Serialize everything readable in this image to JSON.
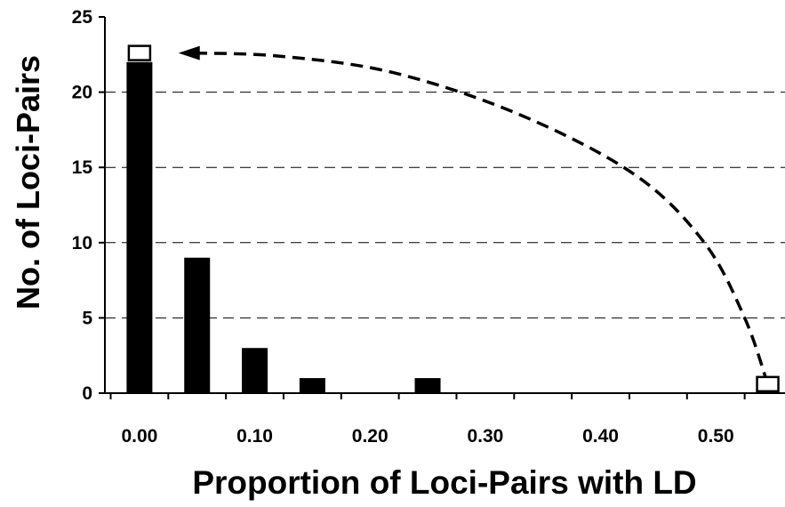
{
  "chart_data": {
    "type": "bar",
    "xlabel": "Proportion of Loci-Pairs with LD",
    "ylabel": "No. of Loci-Pairs",
    "xlim": [
      -0.03,
      0.56
    ],
    "ylim": [
      0,
      25
    ],
    "x_ticks": [
      0.0,
      0.1,
      0.2,
      0.3,
      0.4,
      0.5
    ],
    "x_tick_labels": [
      "0.00",
      "0.10",
      "0.20",
      "0.30",
      "0.40",
      "0.50"
    ],
    "y_ticks": [
      0,
      5,
      10,
      15,
      20,
      25
    ],
    "y_tick_labels": [
      "0",
      "5",
      "10",
      "15",
      "20",
      "25"
    ],
    "grid": "horizontal dashed",
    "bar_color": "#000000",
    "bars": [
      {
        "x": 0.0,
        "value": 22
      },
      {
        "x": 0.05,
        "value": 9
      },
      {
        "x": 0.1,
        "value": 3
      },
      {
        "x": 0.15,
        "value": 1
      },
      {
        "x": 0.25,
        "value": 1
      }
    ],
    "open_markers": [
      {
        "x": 0.0,
        "value": 22.6
      },
      {
        "x": 0.545,
        "value": 0.6
      }
    ],
    "arrow": {
      "style": "dashed",
      "from": {
        "x": 0.545,
        "value": 0.6
      },
      "to": {
        "x": 0.04,
        "value": 22.6
      },
      "points": [
        {
          "x": 0.545,
          "value": 0.6
        },
        {
          "x": 0.525,
          "value": 5
        },
        {
          "x": 0.49,
          "value": 10
        },
        {
          "x": 0.43,
          "value": 14.5
        },
        {
          "x": 0.33,
          "value": 18.5
        },
        {
          "x": 0.22,
          "value": 21.3
        },
        {
          "x": 0.12,
          "value": 22.4
        },
        {
          "x": 0.04,
          "value": 22.6
        }
      ]
    }
  }
}
